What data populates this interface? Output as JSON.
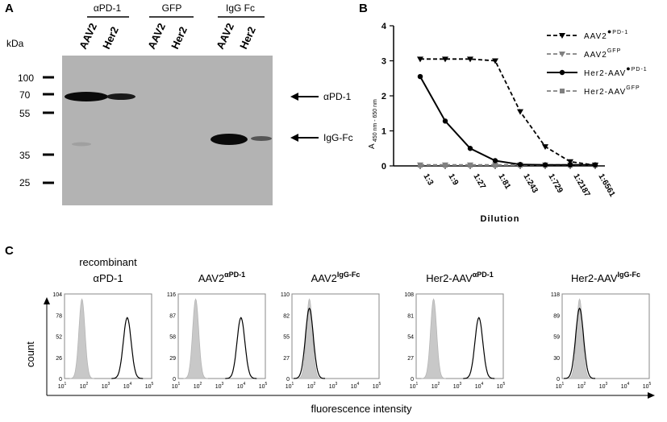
{
  "panelA": {
    "letter": "A",
    "groups": [
      "αPD-1",
      "GFP",
      "IgG Fc"
    ],
    "lanes": [
      "AAV2",
      "Her2",
      "AAV2",
      "Her2",
      "AAV2",
      "Her2"
    ],
    "kda_label": "kDa",
    "markers": [
      "100",
      "70",
      "55",
      "35",
      "25"
    ],
    "arrow_labels": [
      "αPD-1",
      "IgG-Fc"
    ]
  },
  "panelB": {
    "letter": "B",
    "xlabel": "Dilution",
    "ylabel": "A",
    "ylabel_sub": "450 nm - 650 nm",
    "legend": [
      {
        "base": "AAV2",
        "sup": "PD-1",
        "style": "dashed",
        "color": "#000000",
        "marker": "triangle-down",
        "dot": true
      },
      {
        "base": "AAV2",
        "sup": "GFP",
        "style": "dashed",
        "color": "#808080",
        "marker": "triangle-down",
        "dot": false
      },
      {
        "base": "Her2-AAV",
        "sup": "PD-1",
        "style": "solid",
        "color": "#000000",
        "marker": "circle",
        "dot": true
      },
      {
        "base": "Her2-AAV",
        "sup": "GFP",
        "style": "dashed",
        "color": "#808080",
        "marker": "square",
        "dot": false
      }
    ]
  },
  "chart_data": {
    "type": "line",
    "categories": [
      "1:3",
      "1:9",
      "1:27",
      "1:81",
      "1:243",
      "1:729",
      "1:2187",
      "1:6561"
    ],
    "ylim": [
      0,
      4
    ],
    "yticks": [
      "0",
      "1",
      "2",
      "3",
      "4"
    ],
    "xlabel": "Dilution",
    "ylabel": "A 450 nm - 650 nm",
    "series": [
      {
        "name": "AAV2 PD-1",
        "values": [
          3.05,
          3.05,
          3.05,
          3.0,
          1.55,
          0.55,
          0.12,
          0.02
        ]
      },
      {
        "name": "AAV2 GFP",
        "values": [
          0.03,
          0.03,
          0.03,
          0.03,
          0.03,
          0.03,
          0.03,
          0.03
        ]
      },
      {
        "name": "Her2-AAV PD-1",
        "values": [
          2.55,
          1.28,
          0.5,
          0.15,
          0.04,
          0.03,
          0.03,
          0.03
        ]
      },
      {
        "name": "Her2-AAV GFP",
        "values": [
          0.02,
          0.02,
          0.02,
          0.02,
          0.02,
          0.02,
          0.02,
          0.02
        ]
      }
    ]
  },
  "panelC": {
    "letter": "C",
    "xlabel": "fluorescence intensity",
    "ylabel": "count",
    "xticks": [
      "10",
      "10",
      "10",
      "10",
      "10",
      "10"
    ],
    "xtick_exps": [
      "1",
      "2",
      "3",
      "4",
      "5",
      ""
    ],
    "panels": [
      {
        "title_line1": "recombinant",
        "title_line2": "αPD-1",
        "title_sup": "",
        "yticks": [
          "104",
          "78",
          "52",
          "26",
          "0"
        ],
        "shift": "high"
      },
      {
        "title_line1": "",
        "title_line2": "AAV2",
        "title_sup": "αPD-1",
        "yticks": [
          "116",
          "87",
          "58",
          "29",
          "0"
        ],
        "shift": "high"
      },
      {
        "title_line1": "",
        "title_line2": "AAV2",
        "title_sup": "IgG-Fc",
        "yticks": [
          "110",
          "82",
          "55",
          "27",
          "0"
        ],
        "shift": "none"
      },
      {
        "title_line1": "",
        "title_line2": "Her2-AAV",
        "title_sup": "αPD-1",
        "yticks": [
          "108",
          "81",
          "54",
          "27",
          "0"
        ],
        "shift": "high"
      },
      {
        "title_line1": "",
        "title_line2": "Her2-AAV",
        "title_sup": "IgG-Fc",
        "yticks": [
          "118",
          "89",
          "59",
          "30",
          "0"
        ],
        "shift": "none"
      }
    ]
  }
}
